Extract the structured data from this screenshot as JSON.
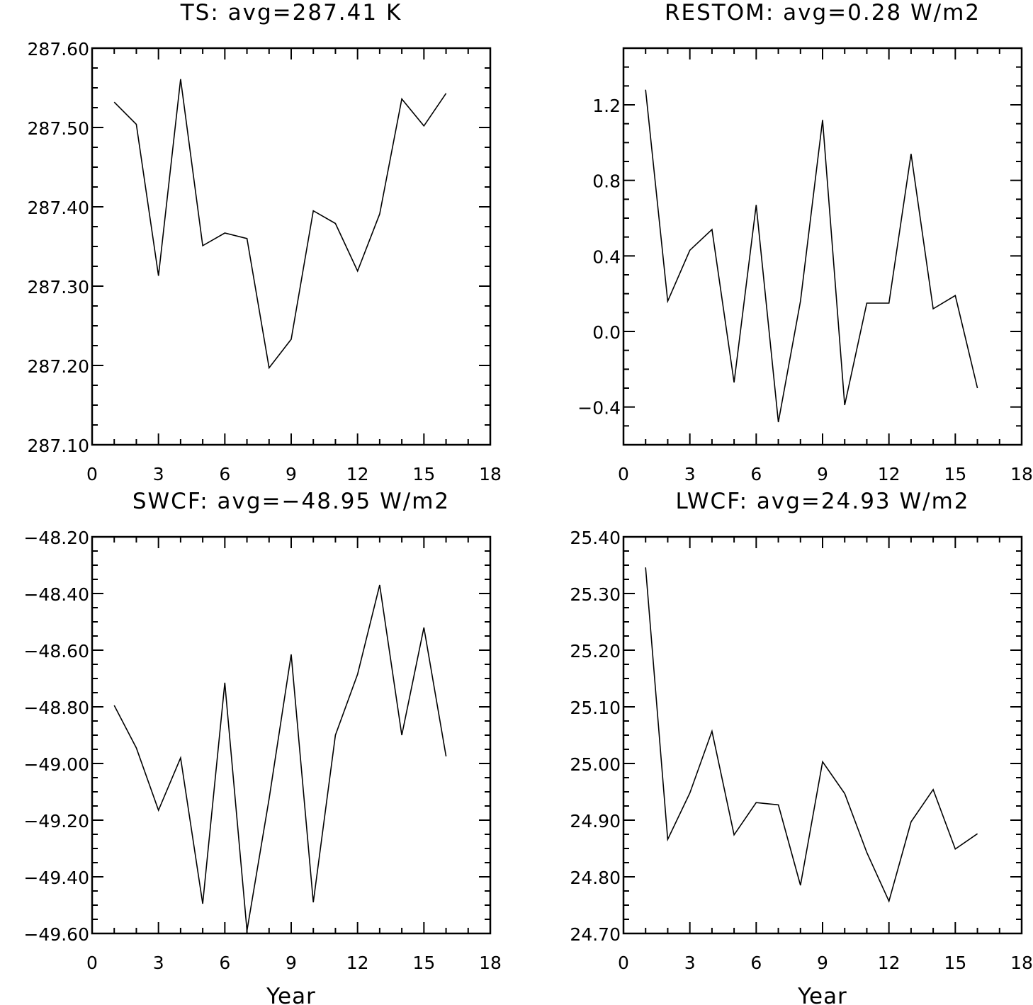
{
  "chart_data": [
    {
      "type": "line",
      "title": "TS: avg=287.41 K",
      "xlabel": "",
      "ylabel": "",
      "xlim": [
        0,
        18
      ],
      "ylim": [
        287.1,
        287.6
      ],
      "xticks": [
        0,
        3,
        6,
        9,
        12,
        15,
        18
      ],
      "xtick_labels": [
        "0",
        "3",
        "6",
        "9",
        "12",
        "15",
        "18"
      ],
      "yticks": [
        287.1,
        287.2,
        287.3,
        287.4,
        287.5,
        287.6
      ],
      "ytick_labels": [
        "287.10",
        "287.20",
        "287.30",
        "287.40",
        "287.50",
        "287.60"
      ],
      "grid": false,
      "x": [
        1,
        2,
        3,
        4,
        5,
        6,
        7,
        8,
        9,
        10,
        11,
        12,
        13,
        14,
        15,
        16
      ],
      "y": [
        287.532,
        287.504,
        287.313,
        287.561,
        287.351,
        287.367,
        287.36,
        287.197,
        287.233,
        287.395,
        287.379,
        287.319,
        287.391,
        287.536,
        287.502,
        287.543
      ]
    },
    {
      "type": "line",
      "title": "RESTOM: avg=0.28 W/m2",
      "xlabel": "",
      "ylabel": "",
      "xlim": [
        0,
        18
      ],
      "ylim": [
        -0.6,
        1.5
      ],
      "xticks": [
        0,
        3,
        6,
        9,
        12,
        15,
        18
      ],
      "xtick_labels": [
        "0",
        "3",
        "6",
        "9",
        "12",
        "15",
        "18"
      ],
      "yticks": [
        -0.4,
        0.0,
        0.4,
        0.8,
        1.2
      ],
      "ytick_labels": [
        "−0.4",
        "0.0",
        "0.4",
        "0.8",
        "1.2"
      ],
      "grid": false,
      "x": [
        1,
        2,
        3,
        4,
        5,
        6,
        7,
        8,
        9,
        10,
        11,
        12,
        13,
        14,
        15,
        16
      ],
      "y": [
        1.28,
        0.16,
        0.43,
        0.54,
        -0.27,
        0.67,
        -0.48,
        0.16,
        1.12,
        -0.39,
        0.15,
        0.15,
        0.94,
        0.12,
        0.19,
        -0.3
      ]
    },
    {
      "type": "line",
      "title": "SWCF: avg=−48.95 W/m2",
      "xlabel": "Year",
      "ylabel": "",
      "xlim": [
        0,
        18
      ],
      "ylim": [
        -49.6,
        -48.2
      ],
      "xticks": [
        0,
        3,
        6,
        9,
        12,
        15,
        18
      ],
      "xtick_labels": [
        "0",
        "3",
        "6",
        "9",
        "12",
        "15",
        "18"
      ],
      "yticks": [
        -49.6,
        -49.4,
        -49.2,
        -49.0,
        -48.8,
        -48.6,
        -48.4,
        -48.2
      ],
      "ytick_labels": [
        "−49.60",
        "−49.40",
        "−49.20",
        "−49.00",
        "−48.80",
        "−48.60",
        "−48.40",
        "−48.20"
      ],
      "grid": false,
      "x": [
        1,
        2,
        3,
        4,
        5,
        6,
        7,
        8,
        9,
        10,
        11,
        12,
        13,
        14,
        15,
        16
      ],
      "y": [
        -48.795,
        -48.945,
        -49.165,
        -48.98,
        -49.495,
        -48.715,
        -49.59,
        -49.125,
        -48.615,
        -49.49,
        -48.9,
        -48.685,
        -48.37,
        -48.9,
        -48.52,
        -48.975
      ]
    },
    {
      "type": "line",
      "title": "LWCF: avg=24.93 W/m2",
      "xlabel": "Year",
      "ylabel": "",
      "xlim": [
        0,
        18
      ],
      "ylim": [
        24.7,
        25.4
      ],
      "xticks": [
        0,
        3,
        6,
        9,
        12,
        15,
        18
      ],
      "xtick_labels": [
        "0",
        "3",
        "6",
        "9",
        "12",
        "15",
        "18"
      ],
      "yticks": [
        24.7,
        24.8,
        24.9,
        25.0,
        25.1,
        25.2,
        25.3,
        25.4
      ],
      "ytick_labels": [
        "24.70",
        "24.80",
        "24.90",
        "25.00",
        "25.10",
        "25.20",
        "25.30",
        "25.40"
      ],
      "grid": false,
      "x": [
        1,
        2,
        3,
        4,
        5,
        6,
        7,
        8,
        9,
        10,
        11,
        12,
        13,
        14,
        15,
        16
      ],
      "y": [
        25.346,
        24.866,
        24.948,
        25.057,
        24.874,
        24.931,
        24.927,
        24.785,
        25.003,
        24.947,
        24.843,
        24.757,
        24.897,
        24.954,
        24.849,
        24.876
      ]
    }
  ]
}
